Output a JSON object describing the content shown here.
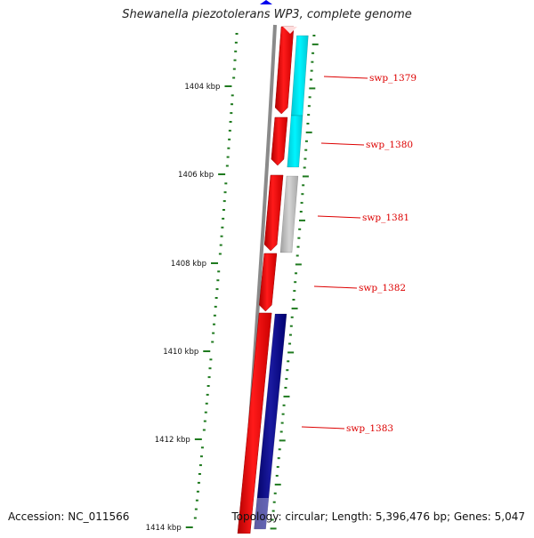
{
  "title": "Shewanella piezotolerans WP3, complete genome",
  "footer": {
    "accession": "Accession: NC_011566",
    "topology": "Topology: circular; Length: 5,396,476 bp; Genes: 5,047"
  },
  "colors": {
    "backbone": "#8a8a8a",
    "forward_gene": "#ee0000",
    "tick": "#1f7a1f",
    "label": "#dd0000",
    "marker": "#0000ee"
  },
  "scale_ticks": [
    {
      "label": "1404 kbp"
    },
    {
      "label": "1406 kbp"
    },
    {
      "label": "1408 kbp"
    },
    {
      "label": "1410 kbp"
    },
    {
      "label": "1412 kbp"
    },
    {
      "label": "1414 kbp"
    }
  ],
  "genes": [
    {
      "label": "swp_1379",
      "color": "#00e5ee"
    },
    {
      "label": "swp_1380",
      "color": "#00e5ee"
    },
    {
      "label": "swp_1381",
      "color": "#b8b8b8"
    },
    {
      "label": "swp_1382",
      "color": ""
    },
    {
      "label": "swp_1383",
      "color": "#00007a"
    }
  ]
}
